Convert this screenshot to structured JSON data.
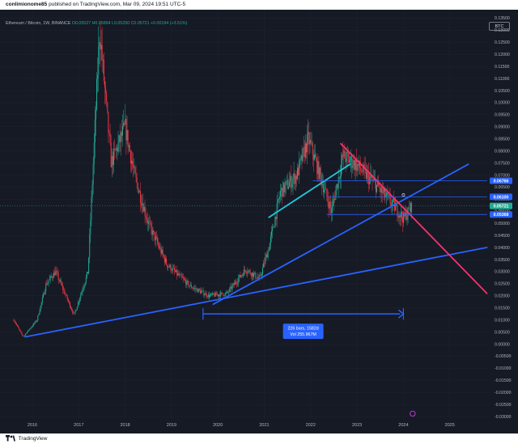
{
  "header": {
    "user": "conlimionome85",
    "published_text": "published on TradingView.com, Mar 09, 2024 19:51 UTC-5"
  },
  "legend": {
    "symbol": "Ethereum / Bitcoin, 1W, BINANCE",
    "ohlc": "O0.05527 H0.05894 L0.05290 C0.05721 +0.00194 (+3.51%)"
  },
  "currency_button": "BTC",
  "footer": {
    "brand": "TradingView"
  },
  "measure": {
    "line1": "226 bars, 1582d",
    "line2": "Vol 255.967M"
  },
  "colors": {
    "background": "#161a25",
    "up": "#22ab94",
    "down": "#f23645",
    "trendline": "#2962ff",
    "resistance": "#f7326c",
    "channel": "#26c6da"
  },
  "chart_data": {
    "type": "candlestick",
    "title": "Ethereum / Bitcoin, 1W, BINANCE",
    "x_ticks": [
      "2016",
      "2017",
      "2018",
      "2019",
      "2020",
      "2021",
      "2022",
      "2023",
      "2024",
      "2025"
    ],
    "y_ticks": [
      "0.13500",
      "0.13000",
      "0.12500",
      "0.12000",
      "0.11500",
      "0.11000",
      "0.10500",
      "0.10000",
      "0.09500",
      "0.09000",
      "0.08500",
      "0.08000",
      "0.07500",
      "0.07000",
      "0.06500",
      "0.06000",
      "0.05500",
      "0.05000",
      "0.04500",
      "0.04000",
      "0.03500",
      "0.03000",
      "0.02500",
      "0.02000",
      "0.01500",
      "0.01000",
      "0.00500",
      "0.00000",
      "-0.00500",
      "-0.01000",
      "-0.01500",
      "-0.02000",
      "-0.02500",
      "-0.03000"
    ],
    "ylim": [
      -0.031,
      0.1385
    ],
    "price_labels": [
      {
        "label": "0.06766",
        "value": 0.06766,
        "color": "#2962ff"
      },
      {
        "label": "0.06100",
        "value": 0.061,
        "color": "#2962ff"
      },
      {
        "label": "0.05721",
        "value": 0.05721,
        "color": "#22ab94"
      },
      {
        "label": "0.05368",
        "value": 0.05368,
        "color": "#2962ff"
      }
    ],
    "approx_weekly_close_path": [
      {
        "date": "2015.6",
        "value": 0.01
      },
      {
        "date": "2015.8",
        "value": 0.003
      },
      {
        "date": "2016.1",
        "value": 0.01
      },
      {
        "date": "2016.3",
        "value": 0.025
      },
      {
        "date": "2016.5",
        "value": 0.03
      },
      {
        "date": "2016.9",
        "value": 0.012
      },
      {
        "date": "2017.2",
        "value": 0.03
      },
      {
        "date": "2017.45",
        "value": 0.13
      },
      {
        "date": "2017.7",
        "value": 0.075
      },
      {
        "date": "2018.0",
        "value": 0.09
      },
      {
        "date": "2018.2",
        "value": 0.07
      },
      {
        "date": "2018.5",
        "value": 0.05
      },
      {
        "date": "2018.9",
        "value": 0.033
      },
      {
        "date": "2019.4",
        "value": 0.024
      },
      {
        "date": "2019.8",
        "value": 0.02
      },
      {
        "date": "2020.2",
        "value": 0.021
      },
      {
        "date": "2020.6",
        "value": 0.031
      },
      {
        "date": "2020.9",
        "value": 0.027
      },
      {
        "date": "2021.1",
        "value": 0.04
      },
      {
        "date": "2021.35",
        "value": 0.063
      },
      {
        "date": "2021.7",
        "value": 0.07
      },
      {
        "date": "2021.95",
        "value": 0.085
      },
      {
        "date": "2022.2",
        "value": 0.07
      },
      {
        "date": "2022.45",
        "value": 0.055
      },
      {
        "date": "2022.7",
        "value": 0.078
      },
      {
        "date": "2023.0",
        "value": 0.074
      },
      {
        "date": "2023.4",
        "value": 0.066
      },
      {
        "date": "2023.8",
        "value": 0.057
      },
      {
        "date": "2024.0",
        "value": 0.052
      },
      {
        "date": "2024.19",
        "value": 0.05721
      }
    ],
    "drawings": [
      {
        "name": "long-support-line",
        "color": "#2962ff",
        "from": {
          "date": "2015.85",
          "value": 0.003
        },
        "to": {
          "date": "2025.8",
          "value": 0.04
        }
      },
      {
        "name": "steep-support-line",
        "color": "#2962ff",
        "from": {
          "date": "2019.9",
          "value": 0.0165
        },
        "to": {
          "date": "2025.4",
          "value": 0.0745
        }
      },
      {
        "name": "resistance-line",
        "color": "#f7326c",
        "from": {
          "date": "2022.65",
          "value": 0.083
        },
        "to": {
          "date": "2025.8",
          "value": 0.021
        }
      },
      {
        "name": "channel-line",
        "color": "#26c6da",
        "from": {
          "date": "2021.1",
          "value": 0.0525
        },
        "to": {
          "date": "2022.85",
          "value": 0.0745
        }
      },
      {
        "name": "level-line-high",
        "color": "#2962ff",
        "from": {
          "date": "2022.05",
          "value": 0.06766
        },
        "to": {
          "date": "2025.8",
          "value": 0.06766
        }
      },
      {
        "name": "level-line-mid",
        "color": "#2962ff",
        "from": {
          "date": "2022.35",
          "value": 0.061
        },
        "to": {
          "date": "2025.8",
          "value": 0.061
        }
      },
      {
        "name": "level-line-low",
        "color": "#2962ff",
        "from": {
          "date": "2022.35",
          "value": 0.05368
        },
        "to": {
          "date": "2025.8",
          "value": 0.05368
        }
      }
    ],
    "date_range_measure": {
      "from": "2019.68",
      "to": "2024.0",
      "value": 0.0125,
      "bars": 226,
      "days": 1582,
      "volume": "255.967M"
    }
  }
}
